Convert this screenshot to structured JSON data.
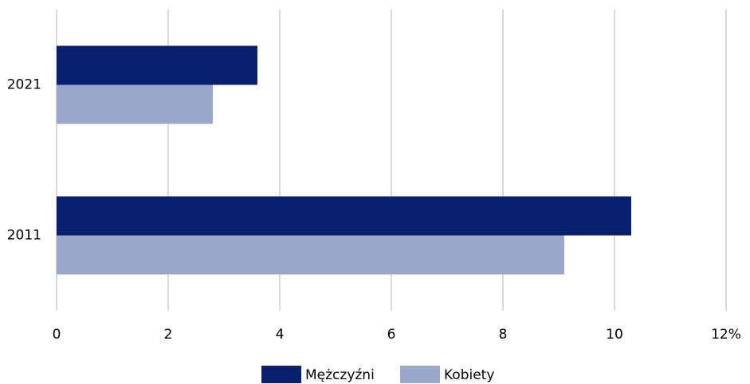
{
  "chart_data": {
    "type": "barh",
    "categories": [
      "2021",
      "2011"
    ],
    "series": [
      {
        "name": "Mężczyźni",
        "color": "#0a1f6e",
        "values": [
          3.6,
          10.3
        ]
      },
      {
        "name": "Kobiety",
        "color": "#9ca8cb",
        "values": [
          2.8,
          9.1
        ]
      }
    ],
    "xlim": [
      0,
      12
    ],
    "xticks": [
      0,
      2,
      4,
      6,
      8,
      10,
      {
        "value": 12,
        "label": "12%"
      }
    ],
    "grid": true,
    "legend": "bottom"
  }
}
